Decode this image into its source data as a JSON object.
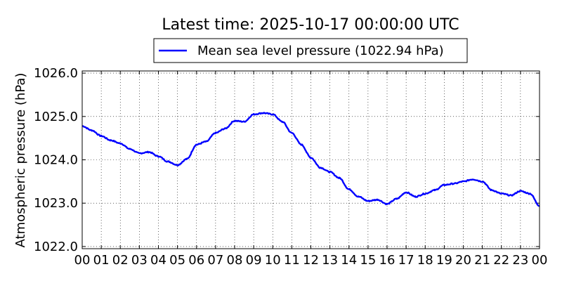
{
  "chart_data": {
    "type": "line",
    "title": "Latest time: 2025-10-17 00:00:00 UTC",
    "ylabel": "Atmospheric pressure (hPa)",
    "xlabel": "",
    "series": [
      {
        "name": "Mean sea level pressure (1022.94 hPa)",
        "color": "#0000ff",
        "x": [
          0,
          0.5,
          1,
          1.5,
          2,
          2.5,
          3,
          3.5,
          4,
          4.5,
          5,
          5.5,
          6,
          6.5,
          7,
          7.5,
          8,
          8.5,
          9,
          9.5,
          10,
          10.5,
          11,
          11.5,
          12,
          12.5,
          13,
          13.5,
          14,
          14.5,
          15,
          15.5,
          16,
          16.5,
          17,
          17.5,
          18,
          18.5,
          19,
          19.5,
          20,
          20.5,
          21,
          21.5,
          22,
          22.5,
          23,
          23.5,
          24
        ],
        "values": [
          1024.78,
          1024.68,
          1024.55,
          1024.45,
          1024.38,
          1024.25,
          1024.15,
          1024.18,
          1024.08,
          1023.96,
          1023.88,
          1024.02,
          1024.35,
          1024.42,
          1024.62,
          1024.72,
          1024.9,
          1024.88,
          1025.05,
          1025.08,
          1025.05,
          1024.88,
          1024.62,
          1024.35,
          1024.05,
          1023.82,
          1023.72,
          1023.58,
          1023.32,
          1023.15,
          1023.05,
          1023.08,
          1022.98,
          1023.1,
          1023.25,
          1023.15,
          1023.22,
          1023.3,
          1023.42,
          1023.45,
          1023.5,
          1023.55,
          1023.5,
          1023.3,
          1023.22,
          1023.18,
          1023.28,
          1023.22,
          1022.94
        ]
      }
    ],
    "xlim": [
      0,
      24
    ],
    "ylim": [
      1021.95,
      1026.05
    ],
    "xticks": [
      0,
      1,
      2,
      3,
      4,
      5,
      6,
      7,
      8,
      9,
      10,
      11,
      12,
      13,
      14,
      15,
      16,
      17,
      18,
      19,
      20,
      21,
      22,
      23,
      24
    ],
    "xtick_labels": [
      "00",
      "01",
      "02",
      "03",
      "04",
      "05",
      "06",
      "07",
      "08",
      "09",
      "10",
      "11",
      "12",
      "13",
      "14",
      "15",
      "16",
      "17",
      "18",
      "19",
      "20",
      "21",
      "22",
      "23",
      "00"
    ],
    "yticks": [
      1022,
      1023,
      1024,
      1025,
      1026
    ],
    "ytick_labels": [
      "1022.0",
      "1023.0",
      "1024.0",
      "1025.0",
      "1026.0"
    ],
    "grid": true,
    "legend_position": "top-center"
  }
}
